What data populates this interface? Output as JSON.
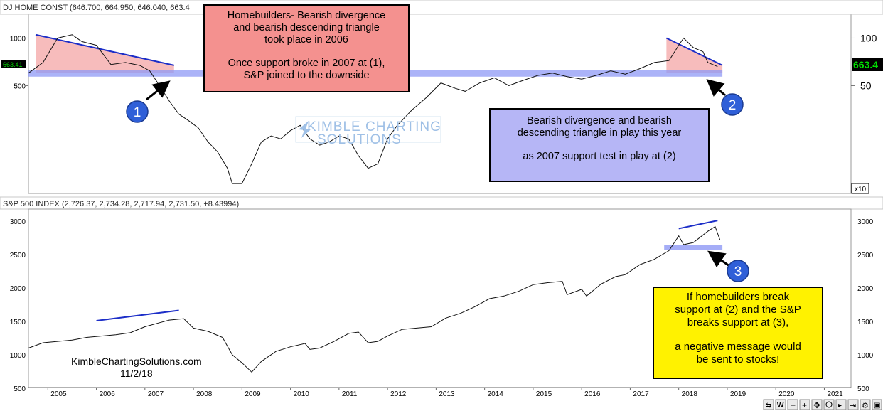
{
  "header": {
    "top_title": "DJ HOME CONST (646.700, 664.950, 646.040, 663.4",
    "bottom_title": "S&P 500 INDEX (2,726.37, 2,734.28, 2,717.94, 2,731.50, +8.43994)",
    "x10_label": "x10",
    "left_price_tag": "663.41",
    "right_price_tag": "663.4"
  },
  "annotations": {
    "callout1_lines": [
      "Homebuilders- Bearish divergence",
      "and bearish descending triangle",
      "took place in 2006",
      "",
      "Once support broke in 2007 at (1),",
      "S&P joined to the downside"
    ],
    "callout2_lines": [
      "Bearish divergence and bearish",
      "descending triangle in play this year",
      "",
      "as 2007 support test in play at (2)"
    ],
    "callout3_lines": [
      "If homebuilders break",
      "support at (2) and the S&P",
      "breaks support at (3),",
      "",
      "a negative message would",
      "be sent to stocks!"
    ],
    "markers": [
      "1",
      "2",
      "3"
    ],
    "watermark": [
      "KIMBLE CHARTING",
      "SOLUTIONS"
    ],
    "credit": [
      "KimbleChartingSolutions.com",
      "11/2/18"
    ]
  },
  "colors": {
    "triangle_fill": "#f6b0b0",
    "support_band": "#8f99f5",
    "trendline": "#1c2ec8",
    "marker_fill": "#2f5fd8",
    "price_tag": "#00aa00",
    "callout1": "#f4918f",
    "callout2": "#b6b6f6",
    "callout3": "#fff200"
  },
  "chart_data": [
    {
      "type": "line",
      "title": "DJ HOME CONST (646.700, 664.950, 646.040, 663.4",
      "scale": "log",
      "left_axis_ticks": [
        "1000",
        "500"
      ],
      "right_axis_ticks": [
        "100",
        "50"
      ],
      "right_axis_multiplier": "x10",
      "x_ticks": [
        "2005",
        "2006",
        "2007",
        "2008",
        "2009",
        "2010",
        "2011",
        "2012",
        "2013",
        "2014",
        "2015",
        "2016",
        "2017",
        "2018",
        "2019",
        "2020",
        "2021"
      ],
      "series": [
        {
          "x": [
            2004.6,
            2004.9,
            2005.2,
            2005.5,
            2005.7,
            2006.0,
            2006.3,
            2006.6,
            2006.9,
            2007.1,
            2007.3,
            2007.5,
            2007.7,
            2007.9,
            2008.1,
            2008.3,
            2008.5,
            2008.7,
            2008.8,
            2009.0,
            2009.2,
            2009.4,
            2009.6,
            2009.8,
            2010.0,
            2010.2,
            2010.4,
            2010.6,
            2010.8,
            2011.0,
            2011.2,
            2011.4,
            2011.6,
            2011.8,
            2012.0,
            2012.2,
            2012.5,
            2012.8,
            2013.1,
            2013.4,
            2013.6,
            2013.9,
            2014.2,
            2014.5,
            2014.8,
            2015.1,
            2015.4,
            2015.7,
            2016.0,
            2016.3,
            2016.6,
            2016.9,
            2017.2,
            2017.5,
            2017.8,
            2018.0,
            2018.1,
            2018.3,
            2018.5,
            2018.6,
            2018.8
          ],
          "y": [
            600,
            700,
            1000,
            1050,
            950,
            900,
            680,
            700,
            670,
            620,
            500,
            400,
            330,
            300,
            270,
            220,
            190,
            150,
            120,
            120,
            160,
            220,
            240,
            230,
            260,
            280,
            230,
            210,
            220,
            240,
            230,
            180,
            150,
            160,
            230,
            280,
            350,
            420,
            520,
            480,
            460,
            520,
            560,
            500,
            540,
            580,
            600,
            570,
            550,
            580,
            620,
            590,
            640,
            700,
            720,
            900,
            1000,
            870,
            820,
            700,
            660
          ]
        }
      ],
      "support_level": 600,
      "triangles": [
        "2004.6-2007.6",
        "2017.6-2018.9"
      ]
    },
    {
      "type": "line",
      "title": "S&P 500 INDEX (2,726.37, 2,734.28, 2,717.94, 2,731.50, +8.43994)",
      "ylim": [
        500,
        3000
      ],
      "y_ticks": [
        500,
        1000,
        1500,
        2000,
        2500,
        3000
      ],
      "x_ticks": [
        "2005",
        "2006",
        "2007",
        "2008",
        "2009",
        "2010",
        "2011",
        "2012",
        "2013",
        "2014",
        "2015",
        "2016",
        "2017",
        "2018",
        "2019",
        "2020",
        "2021"
      ],
      "series": [
        {
          "x": [
            2004.6,
            2004.9,
            2005.2,
            2005.5,
            2005.8,
            2006.1,
            2006.4,
            2006.7,
            2007.0,
            2007.3,
            2007.5,
            2007.8,
            2008.0,
            2008.3,
            2008.6,
            2008.8,
            2009.0,
            2009.2,
            2009.4,
            2009.7,
            2010.0,
            2010.3,
            2010.4,
            2010.6,
            2010.9,
            2011.2,
            2011.4,
            2011.6,
            2011.8,
            2012.0,
            2012.3,
            2012.6,
            2012.9,
            2013.2,
            2013.5,
            2013.8,
            2014.1,
            2014.4,
            2014.7,
            2015.0,
            2015.3,
            2015.6,
            2015.7,
            2016.0,
            2016.1,
            2016.4,
            2016.7,
            2016.9,
            2017.2,
            2017.5,
            2017.8,
            2018.0,
            2018.1,
            2018.3,
            2018.6,
            2018.75,
            2018.85
          ],
          "y": [
            1100,
            1180,
            1200,
            1220,
            1260,
            1280,
            1300,
            1330,
            1420,
            1480,
            1520,
            1540,
            1400,
            1350,
            1260,
            1000,
            880,
            740,
            900,
            1050,
            1120,
            1170,
            1080,
            1100,
            1200,
            1320,
            1340,
            1180,
            1200,
            1280,
            1380,
            1400,
            1420,
            1550,
            1620,
            1720,
            1840,
            1880,
            1950,
            2050,
            2080,
            2100,
            1900,
            1980,
            1880,
            2060,
            2170,
            2200,
            2350,
            2430,
            2560,
            2780,
            2650,
            2680,
            2850,
            2920,
            2720
          ]
        }
      ],
      "support_level": 2600,
      "trendlines": [
        "2006.0-2007.7",
        "2018.0-2018.8"
      ]
    }
  ]
}
